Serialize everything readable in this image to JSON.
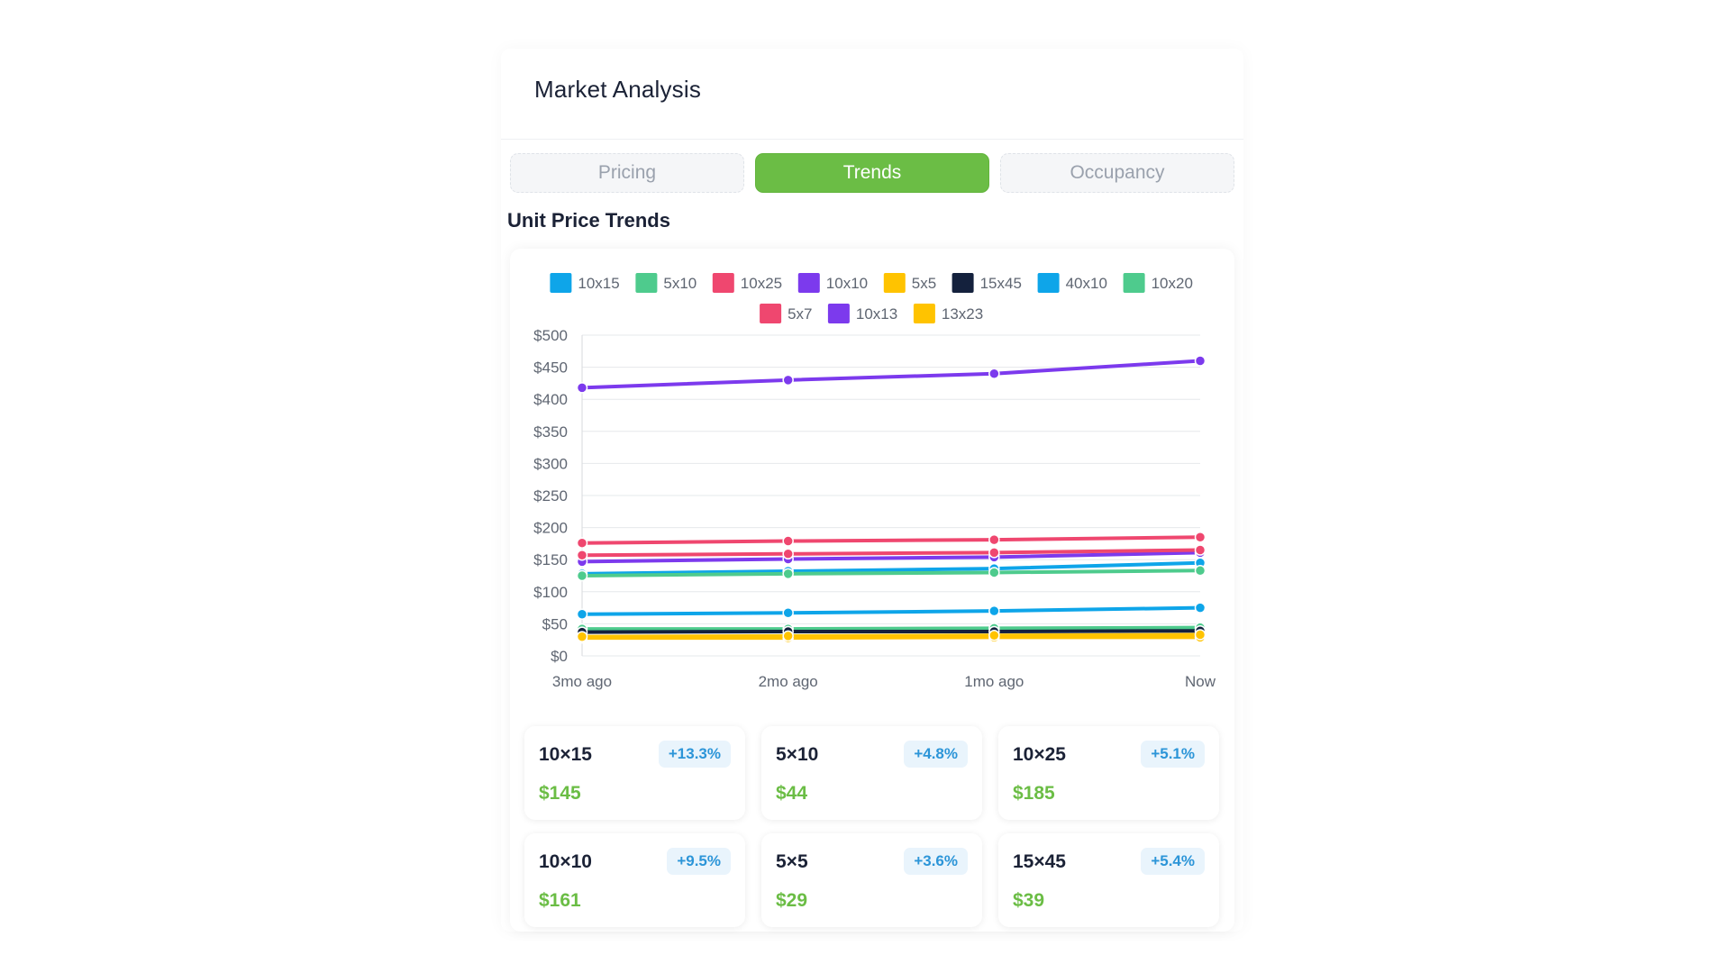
{
  "header": {
    "title": "Market Analysis"
  },
  "tabs": [
    {
      "label": "Pricing",
      "active": false
    },
    {
      "label": "Trends",
      "active": true
    },
    {
      "label": "Occupancy",
      "active": false
    }
  ],
  "section_title": "Unit Price Trends",
  "colors": {
    "accent_green": "#6bbd45",
    "badge_text": "#2c95d8",
    "badge_bg": "#e9f4fc"
  },
  "chart_data": {
    "type": "line",
    "title": "",
    "xlabel": "",
    "ylabel": "",
    "categories": [
      "3mo ago",
      "2mo ago",
      "1mo ago",
      "Now"
    ],
    "ylim": [
      0,
      500
    ],
    "y_ticks": [
      "$0",
      "$50",
      "$100",
      "$150",
      "$200",
      "$250",
      "$300",
      "$350",
      "$400",
      "$450",
      "$500"
    ],
    "grid": true,
    "legend_position": "top-center",
    "series": [
      {
        "name": "10x15",
        "color": "#0ea5e9",
        "values": [
          128,
          132,
          136,
          145
        ]
      },
      {
        "name": "5x10",
        "color": "#4ecb8d",
        "values": [
          42,
          42,
          43,
          44
        ]
      },
      {
        "name": "10x25",
        "color": "#ef476f",
        "values": [
          176,
          179,
          181,
          185
        ]
      },
      {
        "name": "10x10",
        "color": "#7c3aed",
        "values": [
          147,
          151,
          154,
          161
        ]
      },
      {
        "name": "5x5",
        "color": "#ffc300",
        "values": [
          28,
          28,
          29,
          29
        ]
      },
      {
        "name": "15x45",
        "color": "#14213d",
        "values": [
          37,
          38,
          38,
          39
        ]
      },
      {
        "name": "40x10",
        "color": "#0ea5e9",
        "values": [
          65,
          67,
          70,
          75
        ]
      },
      {
        "name": "10x20",
        "color": "#4ecb8d",
        "values": [
          125,
          128,
          130,
          133
        ]
      },
      {
        "name": "5x7",
        "color": "#ef476f",
        "values": [
          157,
          159,
          161,
          165
        ]
      },
      {
        "name": "10x13",
        "color": "#7c3aed",
        "values": [
          418,
          430,
          440,
          460
        ]
      },
      {
        "name": "13x23",
        "color": "#ffc300",
        "values": [
          30,
          31,
          32,
          33
        ]
      }
    ]
  },
  "stats": [
    {
      "size": "10×15",
      "change": "+13.3%",
      "price": "$145"
    },
    {
      "size": "5×10",
      "change": "+4.8%",
      "price": "$44"
    },
    {
      "size": "10×25",
      "change": "+5.1%",
      "price": "$185"
    },
    {
      "size": "10×10",
      "change": "+9.5%",
      "price": "$161"
    },
    {
      "size": "5×5",
      "change": "+3.6%",
      "price": "$29"
    },
    {
      "size": "15×45",
      "change": "+5.4%",
      "price": "$39"
    }
  ]
}
